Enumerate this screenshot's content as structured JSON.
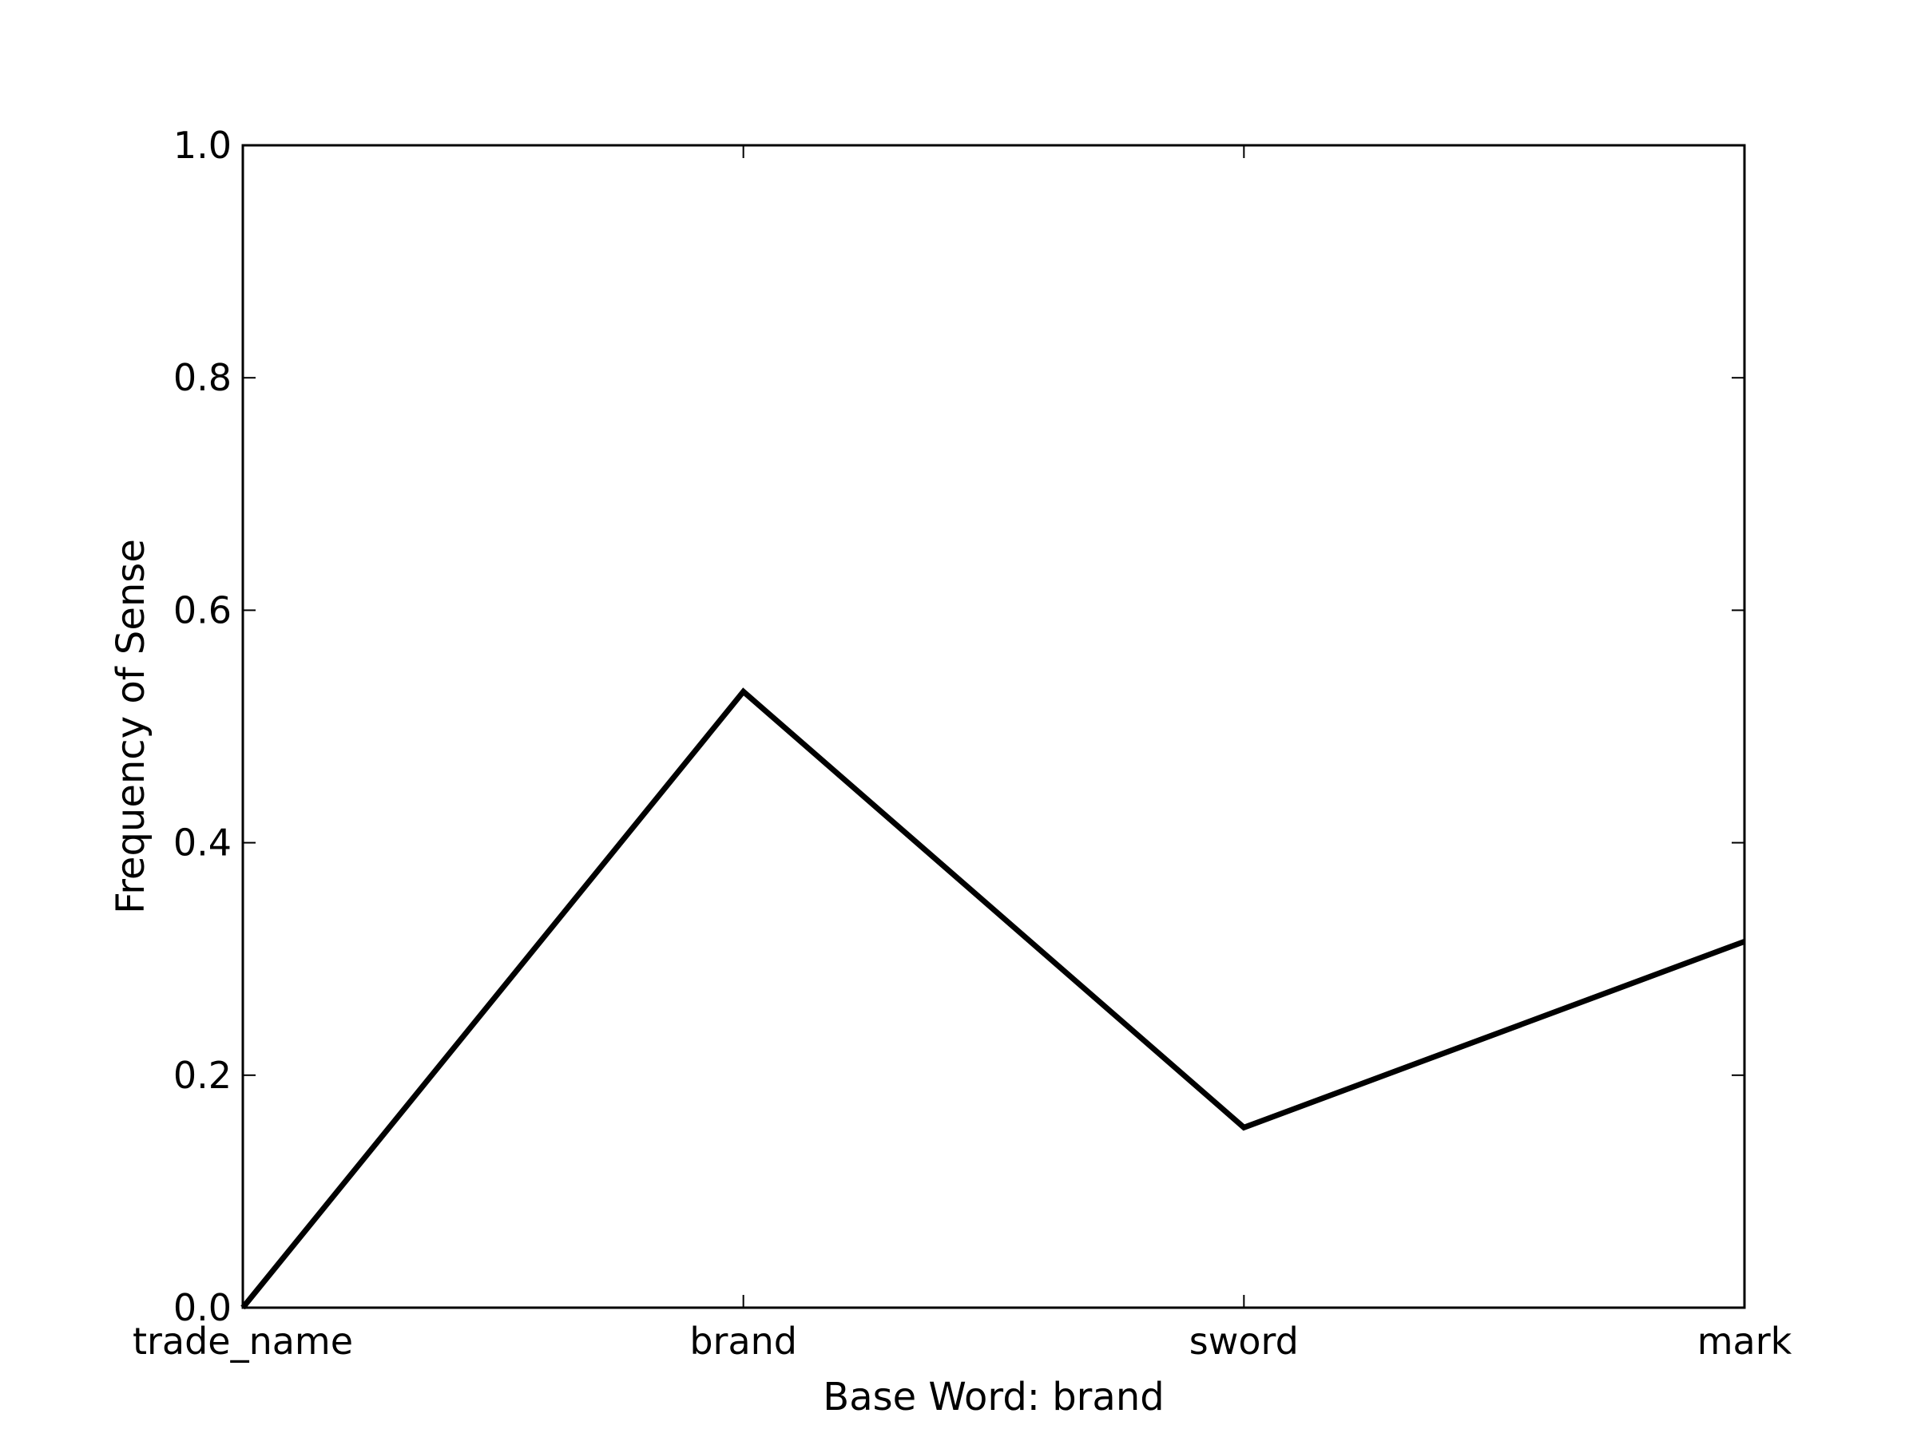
{
  "chart_data": {
    "type": "line",
    "title": "",
    "xlabel": "Base Word: brand",
    "ylabel": "Frequency of Sense",
    "categories": [
      "trade_name",
      "brand",
      "sword",
      "mark"
    ],
    "series": [
      {
        "values": [
          0.0,
          0.53,
          0.155,
          0.315
        ],
        "color": "#000000"
      }
    ],
    "ylim": [
      0.0,
      1.0
    ],
    "yticks": [
      0.0,
      0.2,
      0.4,
      0.6,
      0.8,
      1.0
    ],
    "ytick_labels": [
      "0.0",
      "0.2",
      "0.4",
      "0.6",
      "0.8",
      "1.0"
    ],
    "grid": false,
    "legend": "none"
  }
}
